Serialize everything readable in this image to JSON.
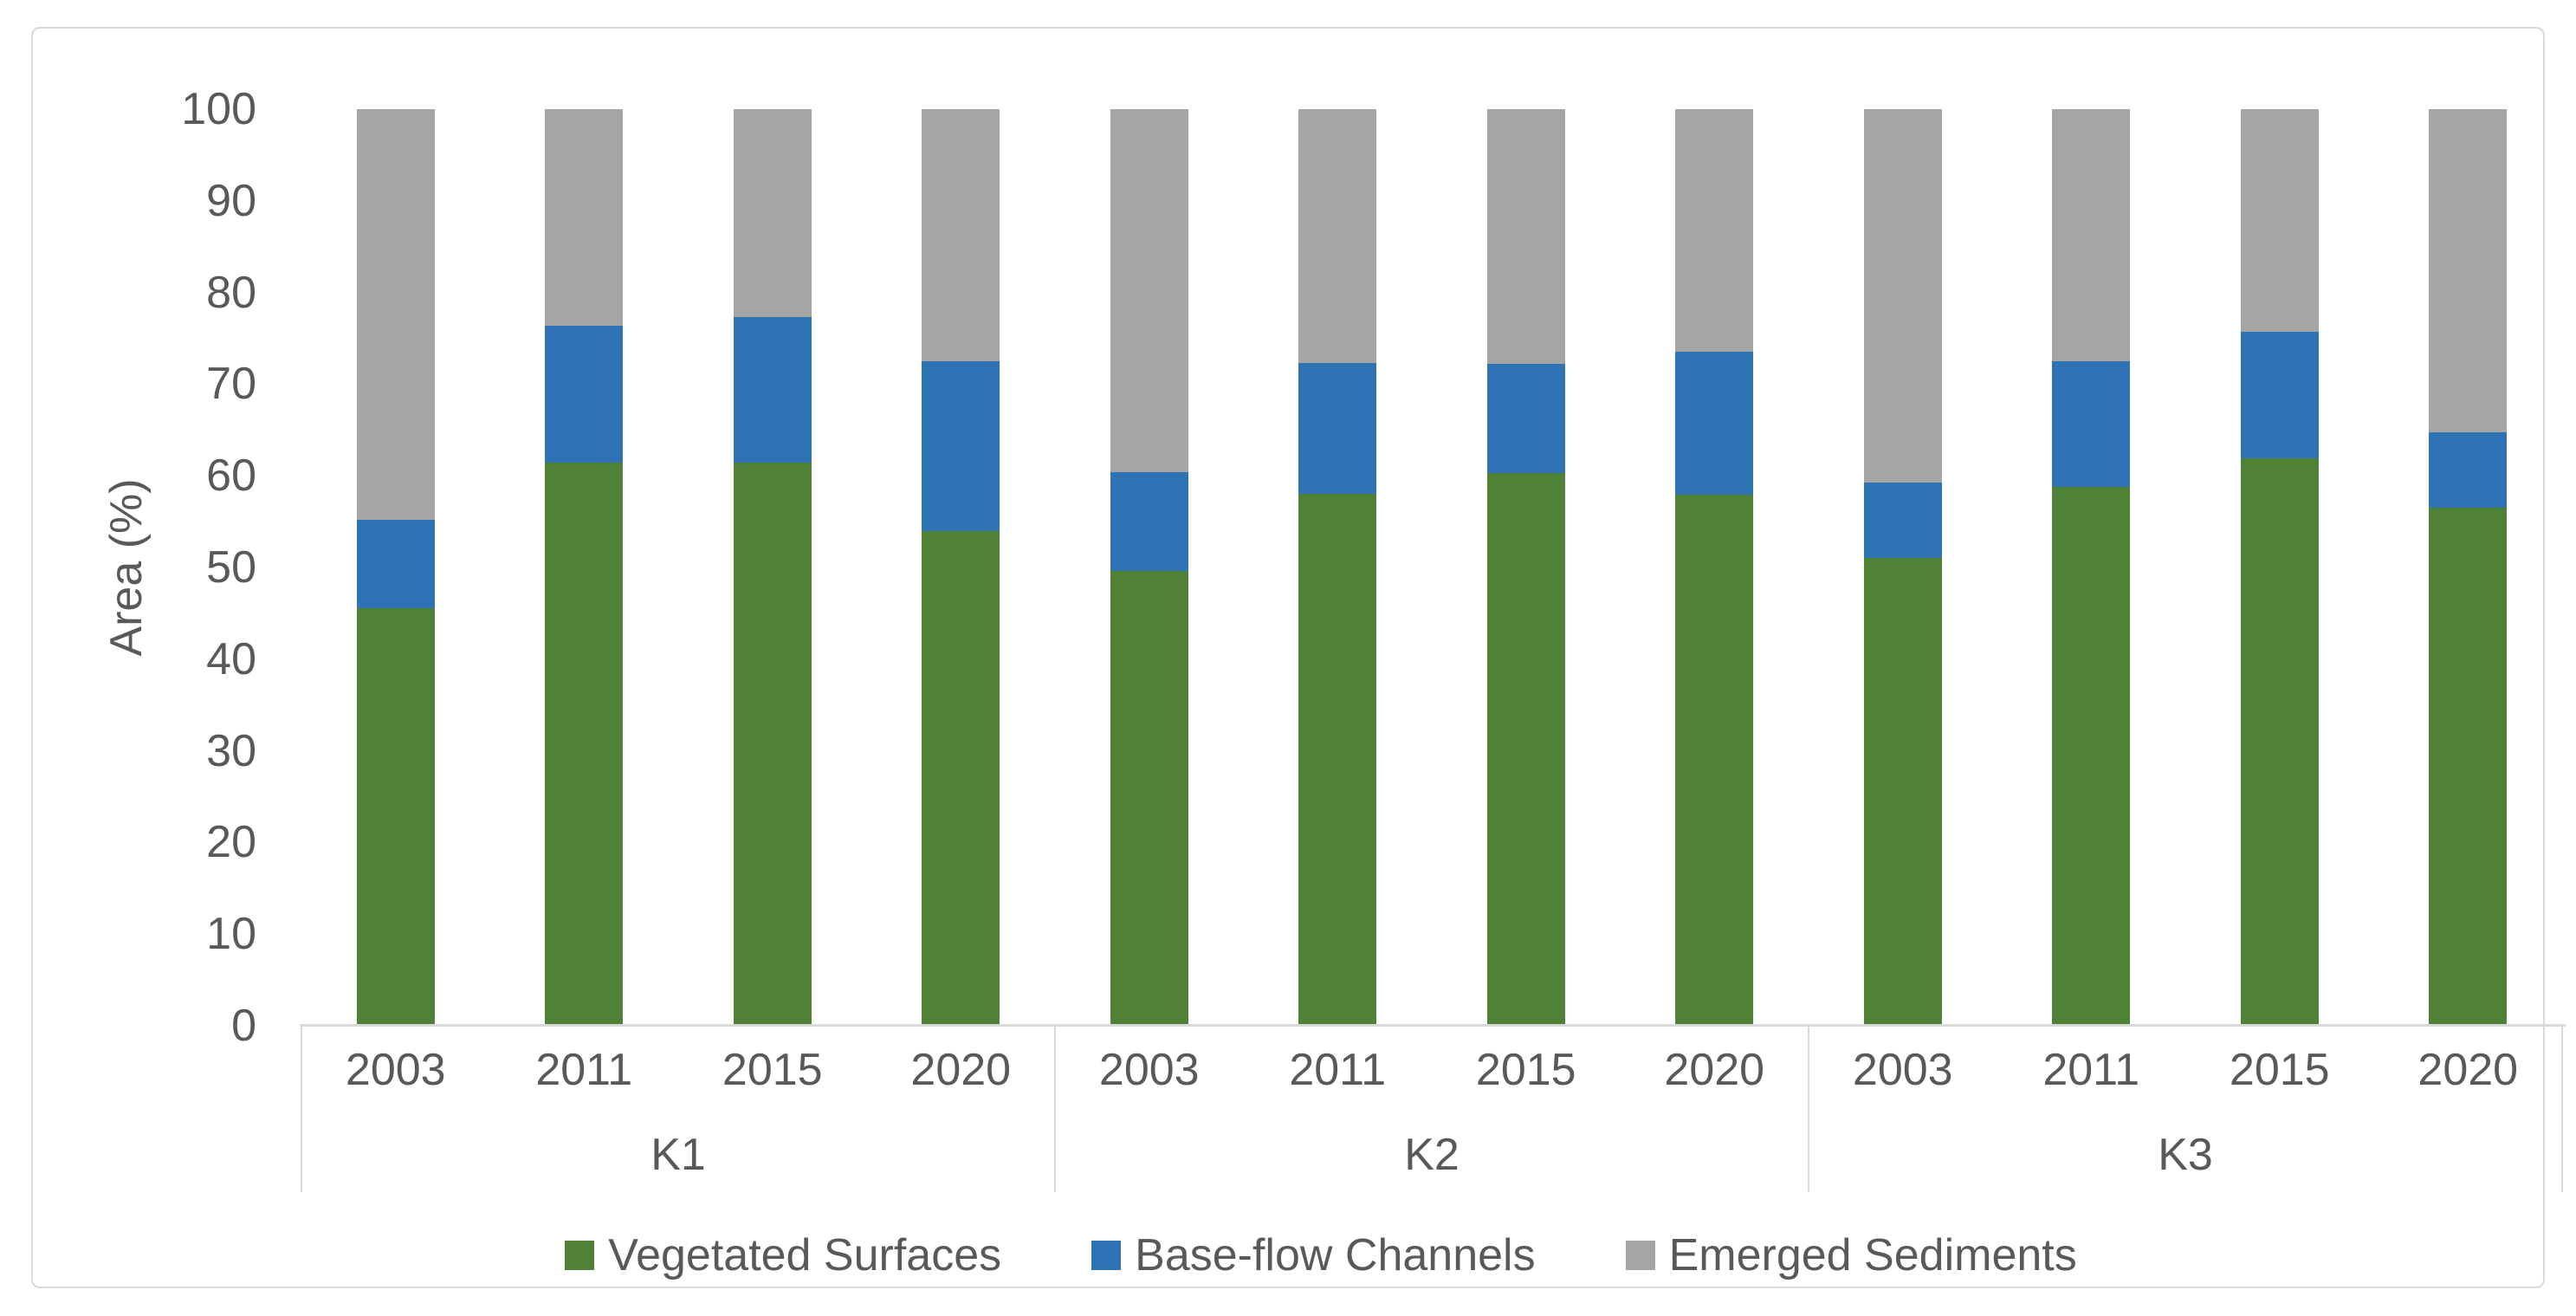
{
  "chart_data": {
    "type": "bar",
    "stacked": true,
    "ylabel": "Area (%)",
    "ylim": [
      0,
      100
    ],
    "yticks": [
      0,
      10,
      20,
      30,
      40,
      50,
      60,
      70,
      80,
      90,
      100
    ],
    "grid": false,
    "legend_position": "bottom",
    "groups": [
      "K1",
      "K2",
      "K3"
    ],
    "categories_per_group": [
      "2003",
      "2011",
      "2015",
      "2020"
    ],
    "categories": [
      "2003",
      "2011",
      "2015",
      "2020",
      "2003",
      "2011",
      "2015",
      "2020",
      "2003",
      "2011",
      "2015",
      "2020"
    ],
    "series": [
      {
        "name": "Vegetated Surfaces",
        "color": "#4f8136",
        "values": [
          45.6,
          61.4,
          61.4,
          54.0,
          49.6,
          58.0,
          60.3,
          57.9,
          51.0,
          58.8,
          61.9,
          56.5
        ]
      },
      {
        "name": "Base-flow Channels",
        "color": "#2e74b5",
        "values": [
          9.6,
          15.0,
          15.9,
          18.5,
          10.8,
          14.3,
          11.9,
          15.6,
          8.3,
          13.7,
          13.8,
          8.2
        ]
      },
      {
        "name": "Emerged Sediments",
        "color": "#a5a5a5",
        "values": [
          44.8,
          23.6,
          22.7,
          27.5,
          39.6,
          27.7,
          27.8,
          26.5,
          40.7,
          27.5,
          24.3,
          35.3
        ]
      }
    ],
    "axis_color": "#d9d9d9",
    "label_color": "#595959"
  }
}
